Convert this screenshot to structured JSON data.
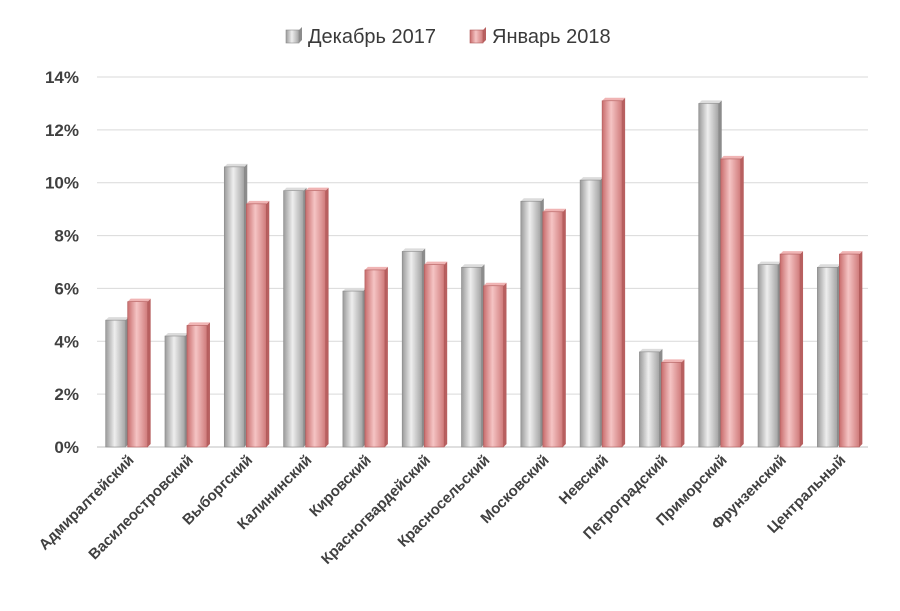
{
  "chart_data": {
    "type": "bar",
    "title": "",
    "xlabel": "",
    "ylabel": "",
    "ylim": [
      0,
      14
    ],
    "yticks": [
      {
        "value": 0,
        "label": "0%"
      },
      {
        "value": 2,
        "label": "2%"
      },
      {
        "value": 4,
        "label": "4%"
      },
      {
        "value": 6,
        "label": "6%"
      },
      {
        "value": 8,
        "label": "8%"
      },
      {
        "value": 10,
        "label": "10%"
      },
      {
        "value": 12,
        "label": "12%"
      },
      {
        "value": 14,
        "label": "14%"
      }
    ],
    "grid": true,
    "legend_position": "top",
    "categories": [
      "Адмиралтейский",
      "Василеостровский",
      "Выборгский",
      "Калининский",
      "Кировский",
      "Красногвардейский",
      "Красносельский",
      "Московский",
      "Невский",
      "Петроградский",
      "Приморский",
      "Фрунзенский",
      "Центральный"
    ],
    "series": [
      {
        "name": "Декабрь 2017",
        "color": "#c0c0c0",
        "values": [
          4.8,
          4.2,
          10.6,
          9.7,
          5.9,
          7.4,
          6.8,
          9.3,
          10.1,
          3.6,
          13.0,
          6.9,
          6.8
        ]
      },
      {
        "name": "Январь 2018",
        "color": "#e39a9a",
        "values": [
          5.5,
          4.6,
          9.2,
          9.7,
          6.7,
          6.9,
          6.1,
          8.9,
          13.1,
          3.2,
          10.9,
          7.3,
          7.3
        ]
      }
    ]
  }
}
